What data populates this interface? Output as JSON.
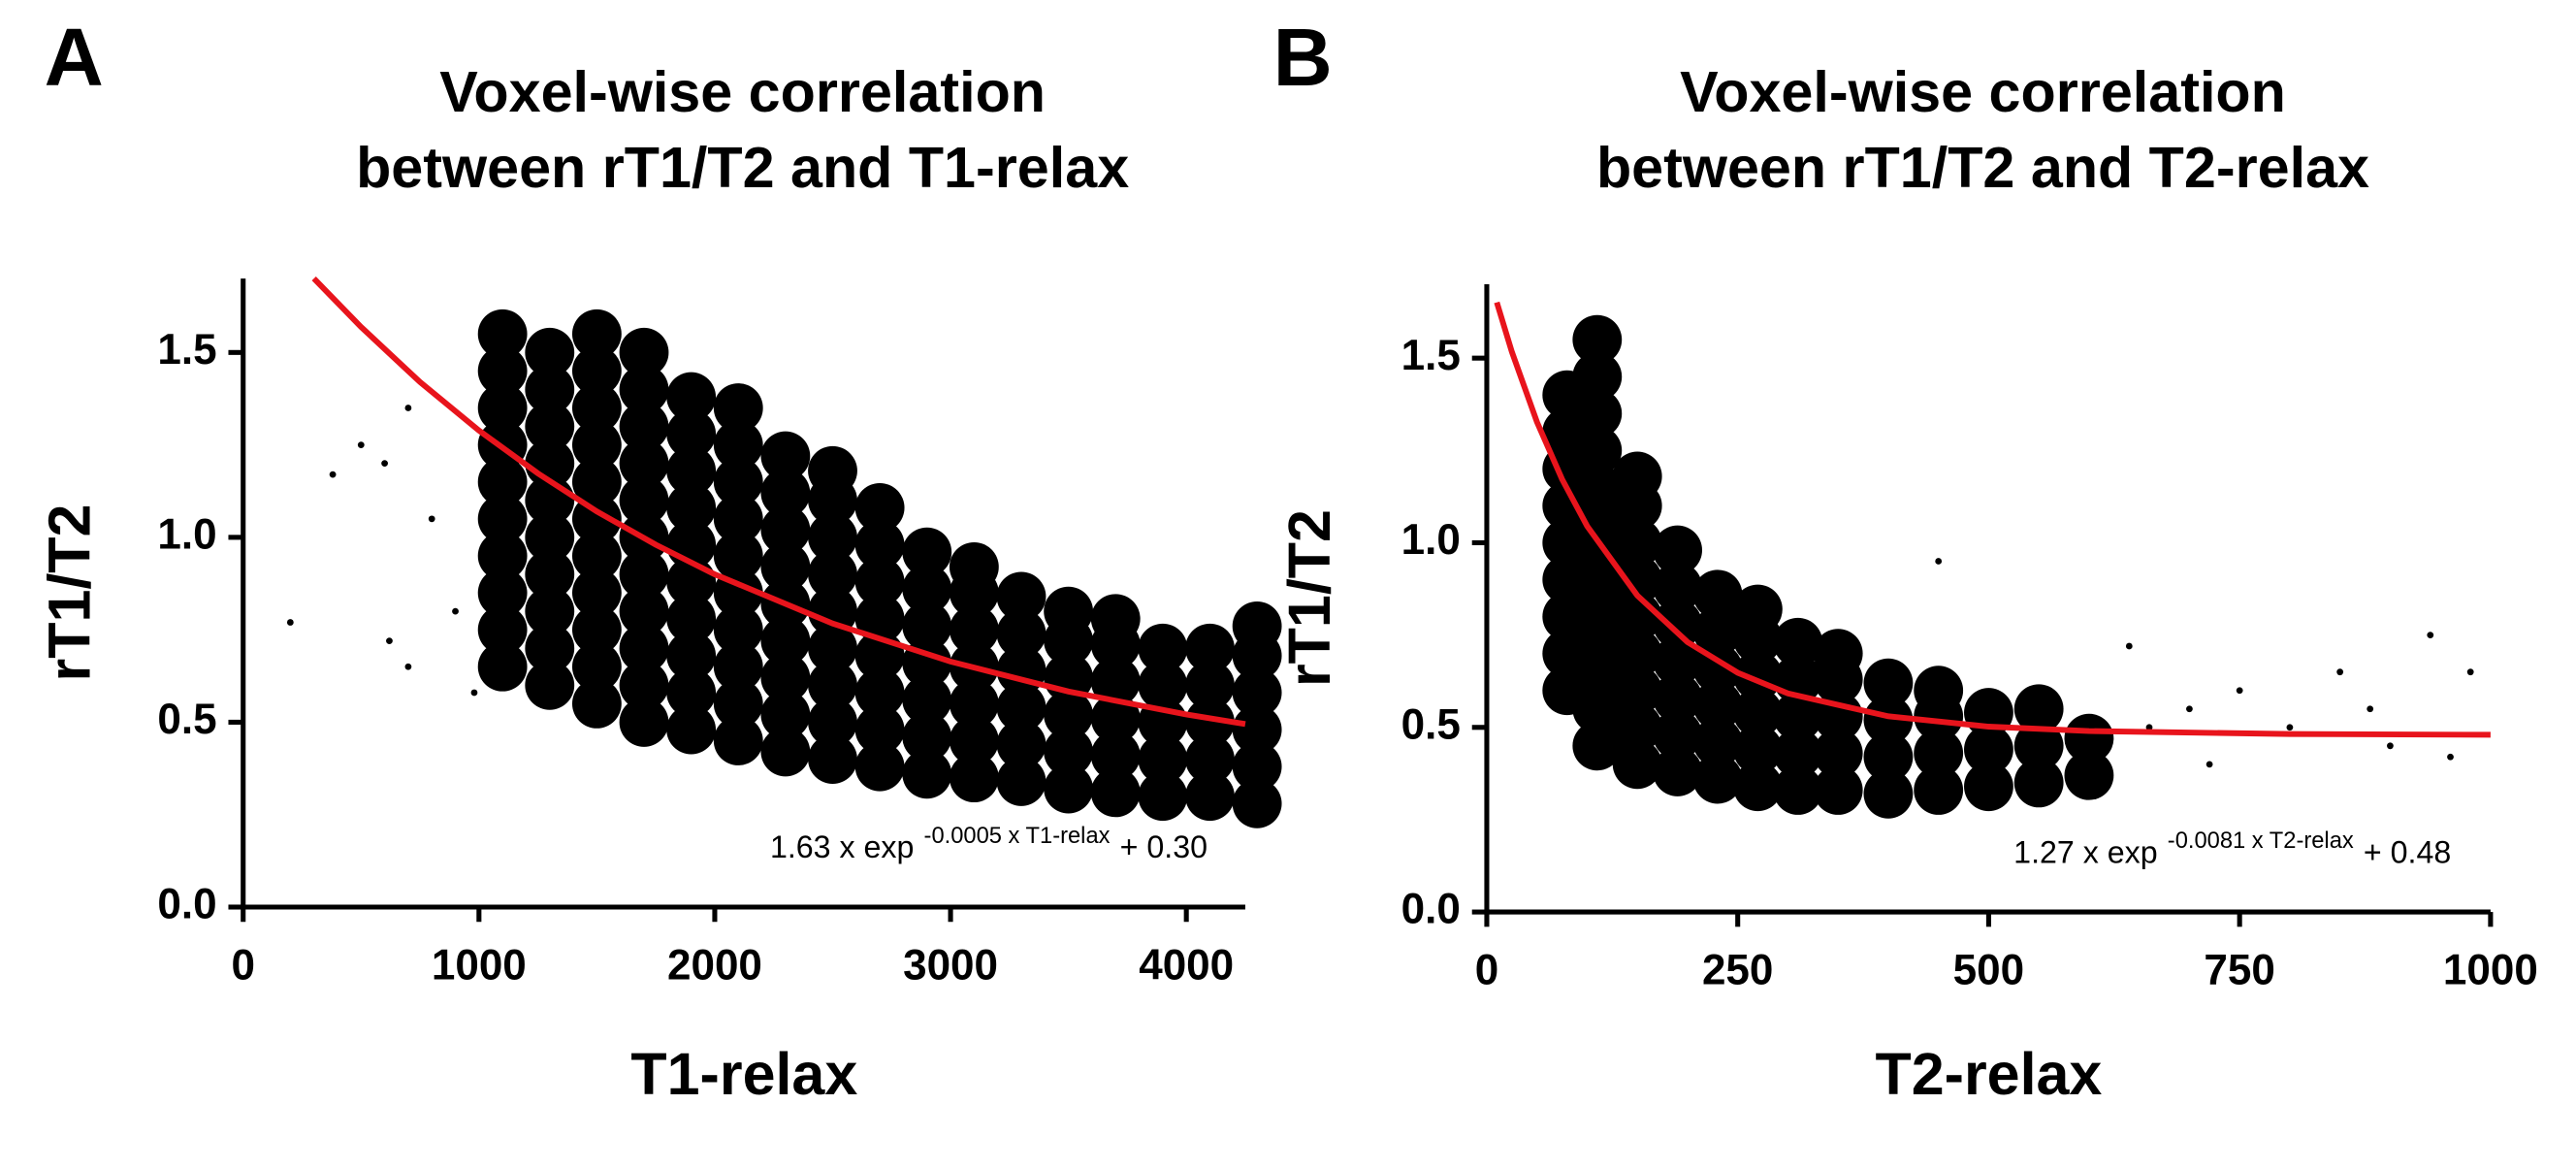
{
  "chart_data": [
    {
      "type": "scatter",
      "panel_label": "A",
      "title": [
        "Voxel-wise correlation",
        "between rT1/T2 and T1-relax"
      ],
      "xlabel": "T1-relax",
      "ylabel": "rT1/T2",
      "annotation": {
        "text": "1.63 x exp",
        "superscript": "-0.0005 x T1-relax",
        "suffix": "+ 0.30"
      },
      "xlim": [
        0,
        4250
      ],
      "ylim": [
        0,
        1.7
      ],
      "xticks": [
        0,
        1000,
        2000,
        3000,
        4000
      ],
      "yticks": [
        {
          "value": 0,
          "label": "0.0"
        },
        0.5,
        {
          "value": 1,
          "label": "1.0"
        },
        1.5
      ],
      "points": {
        "color": "#000000",
        "x": [
          1100,
          1100,
          1100,
          1100,
          1100,
          1100,
          1100,
          1100,
          1100,
          1100,
          1300,
          1300,
          1300,
          1300,
          1300,
          1300,
          1300,
          1300,
          1300,
          1300,
          1500,
          1500,
          1500,
          1500,
          1500,
          1500,
          1500,
          1500,
          1500,
          1500,
          1500,
          1700,
          1700,
          1700,
          1700,
          1700,
          1700,
          1700,
          1700,
          1700,
          1700,
          1700,
          1900,
          1900,
          1900,
          1900,
          1900,
          1900,
          1900,
          1900,
          1900,
          1900,
          2100,
          2100,
          2100,
          2100,
          2100,
          2100,
          2100,
          2100,
          2100,
          2100,
          2300,
          2300,
          2300,
          2300,
          2300,
          2300,
          2300,
          2300,
          2300,
          2500,
          2500,
          2500,
          2500,
          2500,
          2500,
          2500,
          2500,
          2500,
          2700,
          2700,
          2700,
          2700,
          2700,
          2700,
          2700,
          2700,
          2900,
          2900,
          2900,
          2900,
          2900,
          2900,
          2900,
          3100,
          3100,
          3100,
          3100,
          3100,
          3100,
          3100,
          3300,
          3300,
          3300,
          3300,
          3300,
          3300,
          3500,
          3500,
          3500,
          3500,
          3500,
          3500,
          3700,
          3700,
          3700,
          3700,
          3700,
          3700,
          3900,
          3900,
          3900,
          3900,
          3900,
          4100,
          4100,
          4100,
          4100,
          4100,
          4300,
          4300,
          4300,
          4300,
          4300,
          4300
        ],
        "values": [
          0.65,
          0.75,
          0.85,
          0.95,
          1.05,
          1.15,
          1.25,
          1.35,
          1.45,
          1.55,
          0.6,
          0.7,
          0.8,
          0.9,
          1.0,
          1.1,
          1.2,
          1.3,
          1.4,
          1.5,
          0.55,
          0.65,
          0.75,
          0.85,
          0.95,
          1.05,
          1.15,
          1.25,
          1.35,
          1.45,
          1.55,
          0.5,
          0.6,
          0.7,
          0.8,
          0.9,
          1.0,
          1.1,
          1.2,
          1.3,
          1.4,
          1.5,
          0.48,
          0.58,
          0.68,
          0.78,
          0.88,
          0.98,
          1.08,
          1.18,
          1.28,
          1.38,
          0.45,
          0.55,
          0.65,
          0.75,
          0.85,
          0.95,
          1.05,
          1.15,
          1.25,
          1.35,
          0.42,
          0.52,
          0.62,
          0.72,
          0.82,
          0.92,
          1.02,
          1.12,
          1.22,
          0.4,
          0.5,
          0.6,
          0.7,
          0.8,
          0.9,
          1.0,
          1.1,
          1.18,
          0.38,
          0.48,
          0.58,
          0.68,
          0.78,
          0.88,
          0.98,
          1.08,
          0.36,
          0.46,
          0.56,
          0.66,
          0.76,
          0.86,
          0.96,
          0.35,
          0.45,
          0.55,
          0.65,
          0.75,
          0.85,
          0.92,
          0.34,
          0.44,
          0.54,
          0.64,
          0.74,
          0.84,
          0.32,
          0.42,
          0.52,
          0.62,
          0.72,
          0.8,
          0.31,
          0.41,
          0.51,
          0.61,
          0.71,
          0.78,
          0.3,
          0.4,
          0.5,
          0.6,
          0.7,
          0.3,
          0.4,
          0.5,
          0.6,
          0.7,
          0.28,
          0.38,
          0.48,
          0.58,
          0.68,
          0.76
        ]
      },
      "outliers": {
        "color": "#000000",
        "x": [
          200,
          380,
          500,
          600,
          700,
          800,
          900,
          700,
          620,
          980
        ],
        "values": [
          0.77,
          1.17,
          1.25,
          1.2,
          0.65,
          1.05,
          0.8,
          1.35,
          0.72,
          0.58
        ]
      },
      "fit": {
        "color": "#e8141c",
        "x": [
          300,
          500,
          750,
          1000,
          1250,
          1500,
          1750,
          2000,
          2500,
          3000,
          3500,
          4000,
          4250
        ],
        "values": [
          1.7,
          1.569,
          1.42,
          1.289,
          1.173,
          1.07,
          0.98,
          0.9,
          0.767,
          0.664,
          0.583,
          0.521,
          0.495
        ]
      }
    },
    {
      "type": "scatter",
      "panel_label": "B",
      "title": [
        "Voxel-wise correlation",
        "between rT1/T2 and T2-relax"
      ],
      "xlabel": "T2-relax",
      "ylabel": "rT1/T2",
      "annotation": {
        "text": "1.27 x exp",
        "superscript": "-0.0081 x T2-relax",
        "suffix": "+ 0.48"
      },
      "xlim": [
        0,
        1000
      ],
      "ylim": [
        0,
        1.7
      ],
      "xticks": [
        0,
        250,
        500,
        750,
        1000
      ],
      "yticks": [
        {
          "value": 0,
          "label": "0.0"
        },
        0.5,
        {
          "value": 1,
          "label": "1.0"
        },
        1.5
      ],
      "points": {
        "color": "#000000",
        "x": [
          80,
          80,
          80,
          80,
          80,
          80,
          80,
          80,
          80,
          110,
          110,
          110,
          110,
          110,
          110,
          110,
          110,
          110,
          110,
          110,
          110,
          150,
          150,
          150,
          150,
          150,
          150,
          150,
          150,
          150,
          190,
          190,
          190,
          190,
          190,
          190,
          190,
          230,
          230,
          230,
          230,
          230,
          230,
          270,
          270,
          270,
          270,
          270,
          270,
          310,
          310,
          310,
          310,
          310,
          350,
          350,
          350,
          350,
          350,
          400,
          400,
          400,
          400,
          450,
          450,
          450,
          450,
          500,
          500,
          500,
          550,
          550,
          550,
          600,
          600
        ],
        "values": [
          0.6,
          0.7,
          0.8,
          0.9,
          1.0,
          1.1,
          1.2,
          1.3,
          1.4,
          0.45,
          0.55,
          0.65,
          0.75,
          0.85,
          0.95,
          1.05,
          1.15,
          1.25,
          1.35,
          1.45,
          1.55,
          0.4,
          0.5,
          0.6,
          0.7,
          0.8,
          0.9,
          1.0,
          1.1,
          1.18,
          0.38,
          0.48,
          0.58,
          0.68,
          0.78,
          0.88,
          0.98,
          0.36,
          0.46,
          0.56,
          0.66,
          0.76,
          0.86,
          0.34,
          0.44,
          0.54,
          0.64,
          0.74,
          0.82,
          0.33,
          0.43,
          0.53,
          0.63,
          0.73,
          0.33,
          0.43,
          0.53,
          0.63,
          0.7,
          0.32,
          0.42,
          0.52,
          0.62,
          0.33,
          0.43,
          0.53,
          0.6,
          0.34,
          0.44,
          0.54,
          0.35,
          0.45,
          0.55,
          0.37,
          0.47
        ]
      },
      "outliers": {
        "color": "#000000",
        "x": [
          60,
          640,
          700,
          750,
          800,
          850,
          900,
          940,
          980,
          450,
          720,
          880,
          660,
          960
        ],
        "values": [
          0.9,
          0.72,
          0.55,
          0.6,
          0.5,
          0.65,
          0.45,
          0.75,
          0.65,
          0.95,
          0.4,
          0.55,
          0.5,
          0.42
        ]
      },
      "fit": {
        "color": "#e8141c",
        "x": [
          10,
          25,
          50,
          75,
          100,
          150,
          200,
          250,
          300,
          400,
          500,
          600,
          800,
          1000
        ],
        "values": [
          1.651,
          1.517,
          1.327,
          1.172,
          1.045,
          0.857,
          0.731,
          0.648,
          0.592,
          0.53,
          0.502,
          0.49,
          0.482,
          0.48
        ]
      }
    }
  ]
}
